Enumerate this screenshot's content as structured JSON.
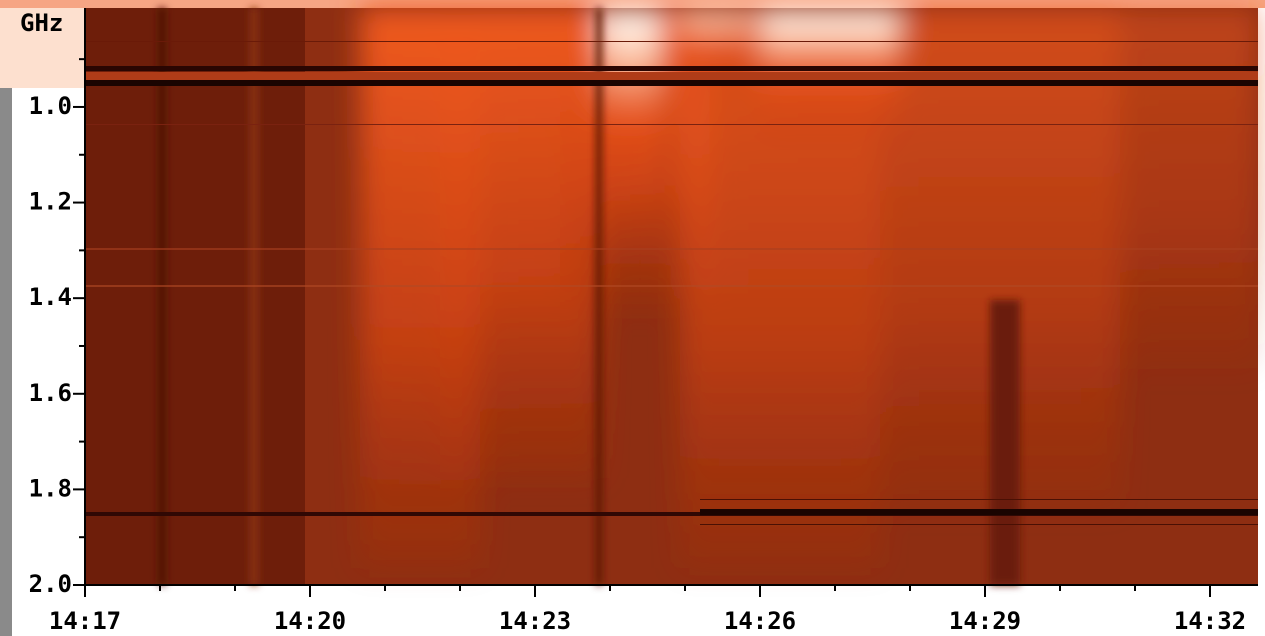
{
  "chart_data": {
    "type": "spectrogram",
    "ylabel": "GHz",
    "ylim": [
      2.0,
      0.793
    ],
    "yticks": [
      {
        "value": 1.0,
        "label": "1.0"
      },
      1.2,
      1.4,
      1.6,
      1.8,
      {
        "value": 2.0,
        "label": "2.0"
      }
    ],
    "yminorticks": [
      0.9,
      1.1,
      1.3,
      1.5,
      1.7,
      1.9
    ],
    "xlim": [
      857,
      872.64
    ],
    "xticks": [
      {
        "value": 857,
        "label": "14:17"
      },
      {
        "value": 860,
        "label": "14:20"
      },
      {
        "value": 863,
        "label": "14:23"
      },
      {
        "value": 866,
        "label": "14:26"
      },
      {
        "value": 869,
        "label": "14:29"
      },
      {
        "value": 872,
        "label": "14:32"
      }
    ],
    "xminorticks": [
      858,
      859,
      861,
      862,
      864,
      865,
      867,
      868,
      870,
      871
    ]
  }
}
